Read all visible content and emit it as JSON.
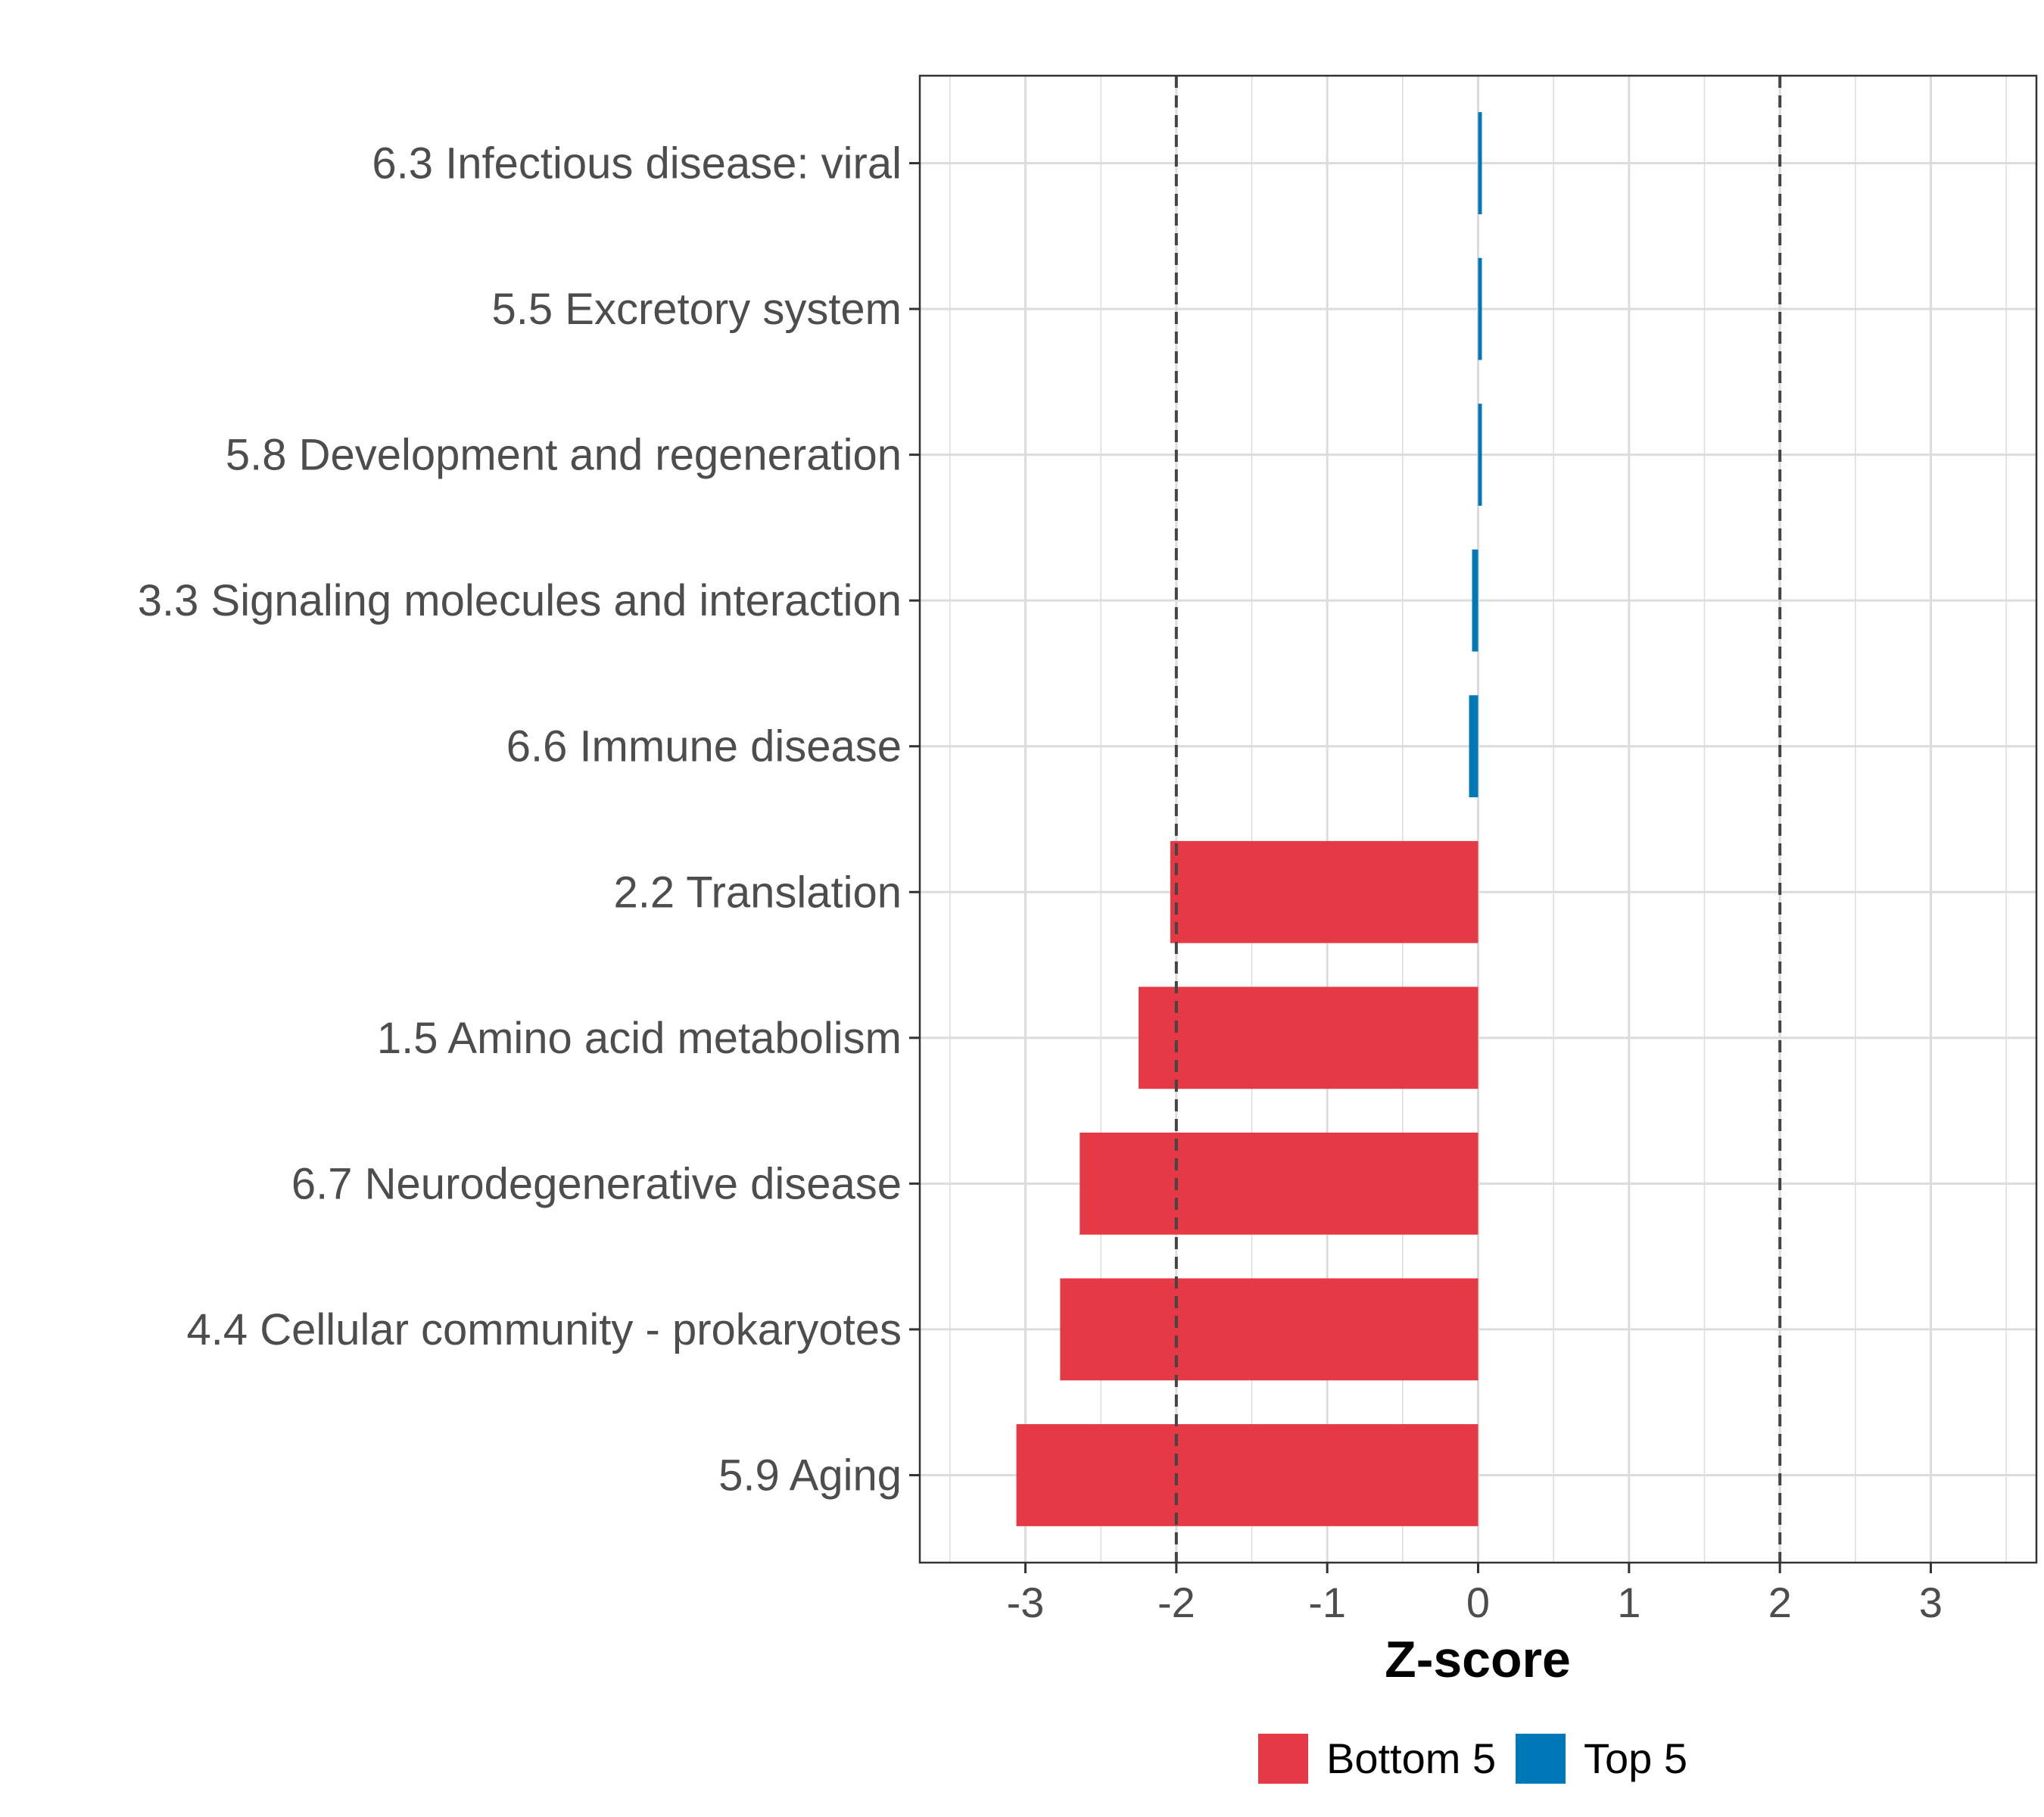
{
  "chart_data": {
    "type": "bar",
    "orientation": "horizontal",
    "categories": [
      "6.3 Infectious disease: viral",
      "5.5 Excretory system",
      "5.8 Development and regeneration",
      "3.3 Signaling molecules and interaction",
      "6.6 Immune disease",
      "2.2 Translation",
      "1.5 Amino acid metabolism",
      "6.7 Neurodegenerative disease",
      "4.4 Cellular community - prokaryotes",
      "5.9 Aging"
    ],
    "values": [
      0.02,
      0.02,
      0.01,
      -0.04,
      -0.06,
      -2.04,
      -2.25,
      -2.64,
      -2.77,
      -3.06
    ],
    "groups": [
      "Top 5",
      "Top 5",
      "Top 5",
      "Top 5",
      "Top 5",
      "Bottom 5",
      "Bottom 5",
      "Bottom 5",
      "Bottom 5",
      "Bottom 5"
    ],
    "xlabel": "Z-score",
    "ylabel": "",
    "xlim": [
      -3.7,
      3.7
    ],
    "xticks": [
      -3,
      -2,
      -1,
      0,
      1,
      2,
      3
    ],
    "reference_lines": [
      -2,
      2
    ],
    "grid": true,
    "legend": {
      "position": "bottom",
      "entries": [
        {
          "label": "Bottom 5",
          "color": "#E63946"
        },
        {
          "label": "Top 5",
          "color": "#0077B6"
        }
      ]
    },
    "colors": {
      "Bottom 5": "#E63946",
      "Top 5": "#0077B6"
    }
  }
}
